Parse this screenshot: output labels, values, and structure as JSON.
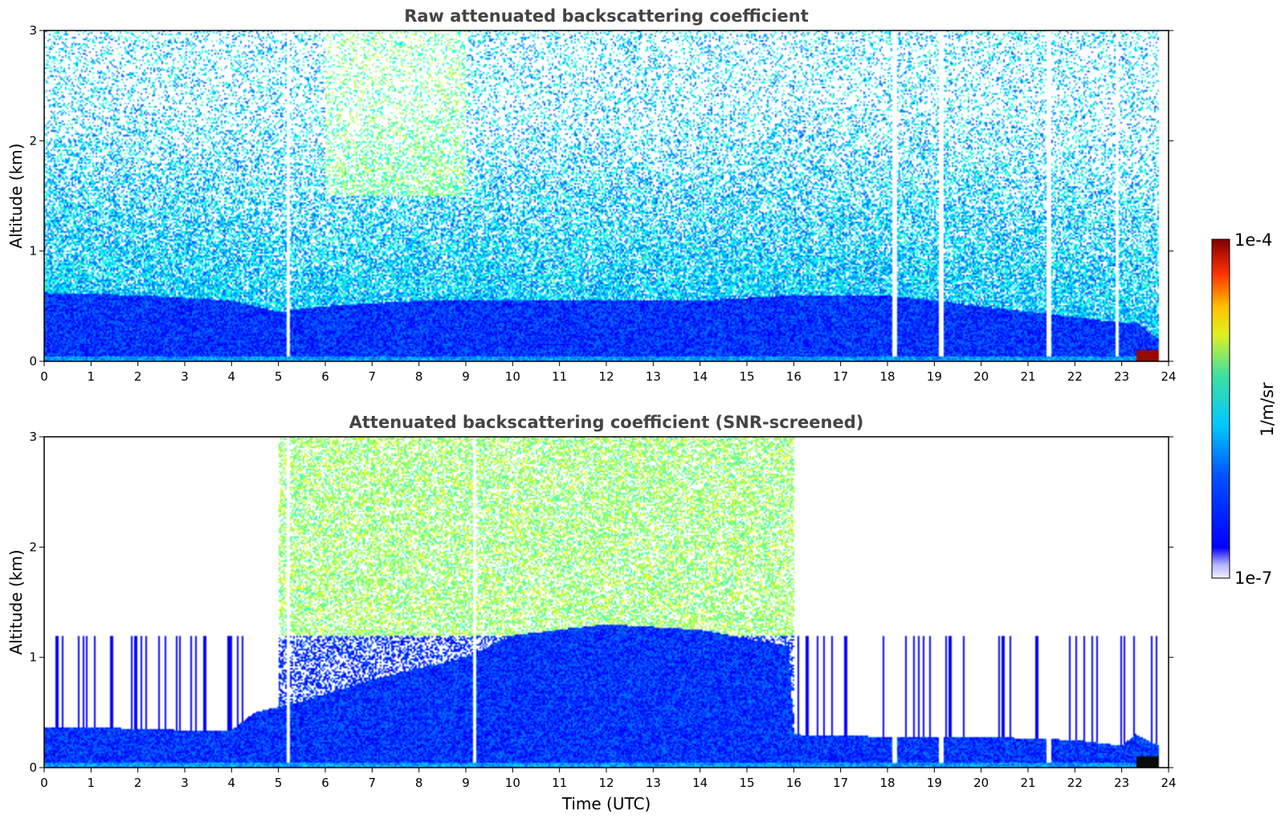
{
  "chart_data": [
    {
      "type": "heatmap",
      "title": "Raw attenuated backscattering coefficient",
      "xlabel": "",
      "ylabel": "Altitude (km)",
      "xlim": [
        0,
        24
      ],
      "ylim": [
        0,
        3
      ],
      "x_ticks": [
        "0",
        "1",
        "2",
        "3",
        "4",
        "5",
        "6",
        "7",
        "8",
        "9",
        "10",
        "11",
        "12",
        "13",
        "14",
        "15",
        "16",
        "17",
        "18",
        "19",
        "20",
        "21",
        "22",
        "23",
        "24"
      ],
      "y_ticks": [
        "0",
        "1",
        "2",
        "3"
      ],
      "aerosol_top_km": [
        [
          0,
          0.62
        ],
        [
          2,
          0.6
        ],
        [
          4,
          0.55
        ],
        [
          5,
          0.45
        ],
        [
          6,
          0.5
        ],
        [
          8,
          0.55
        ],
        [
          10,
          0.55
        ],
        [
          12,
          0.55
        ],
        [
          14,
          0.55
        ],
        [
          16,
          0.6
        ],
        [
          18,
          0.6
        ],
        [
          20,
          0.5
        ],
        [
          22,
          0.4
        ],
        [
          23,
          0.35
        ],
        [
          23.3,
          0.35
        ],
        [
          23.8,
          0.2
        ]
      ],
      "signal_gaps_utc": [
        5.2,
        18.15,
        19.15,
        21.45,
        22.9
      ],
      "high_signal_regions": [
        {
          "x": [
            6,
            9
          ],
          "y": [
            1.5,
            3
          ],
          "level": "green-yellow"
        },
        {
          "x": [
            23.3,
            23.8
          ],
          "y": [
            0,
            0.1
          ],
          "level": "dark-red"
        }
      ],
      "background": "sparse noise 1.0–3.0 km"
    },
    {
      "type": "heatmap",
      "title": "Attenuated backscattering coefficient (SNR-screened)",
      "xlabel": "Time (UTC)",
      "ylabel": "Altitude (km)",
      "xlim": [
        0,
        24
      ],
      "ylim": [
        0,
        3
      ],
      "x_ticks": [
        "0",
        "1",
        "2",
        "3",
        "4",
        "5",
        "6",
        "7",
        "8",
        "9",
        "10",
        "11",
        "12",
        "13",
        "14",
        "15",
        "16",
        "17",
        "18",
        "19",
        "20",
        "21",
        "22",
        "23",
        "24"
      ],
      "y_ticks": [
        "0",
        "1",
        "2",
        "3"
      ],
      "layer_top_km": [
        [
          0,
          0.37
        ],
        [
          1,
          0.37
        ],
        [
          2,
          0.35
        ],
        [
          3,
          0.34
        ],
        [
          4,
          0.34
        ],
        [
          4.5,
          0.5
        ],
        [
          5.5,
          0.6
        ],
        [
          7,
          0.8
        ],
        [
          9,
          1.0
        ],
        [
          10,
          1.2
        ],
        [
          12,
          1.3
        ],
        [
          14,
          1.25
        ],
        [
          15.9,
          1.1
        ],
        [
          16,
          0.3
        ],
        [
          18,
          0.28
        ],
        [
          20,
          0.28
        ],
        [
          22,
          0.25
        ],
        [
          23,
          0.2
        ],
        [
          23.3,
          0.3
        ],
        [
          23.8,
          0.2
        ]
      ],
      "signal_gaps_utc": [
        5.2,
        9.2,
        18.15,
        19.15,
        21.45
      ],
      "high_signal_regions": [
        {
          "x": [
            5,
            16
          ],
          "y": [
            1.2,
            3
          ],
          "level": "green-cyan"
        },
        {
          "x": [
            23.3,
            23.8
          ],
          "y": [
            0,
            0.1
          ],
          "level": "black"
        }
      ],
      "background": "screened (white) above boundary layer outside 5–16 UTC"
    }
  ],
  "colorbar": {
    "label": "1/m/sr",
    "max_label": "1e-4",
    "min_label": "1e-7",
    "colormap": "jet",
    "scale": "log"
  }
}
